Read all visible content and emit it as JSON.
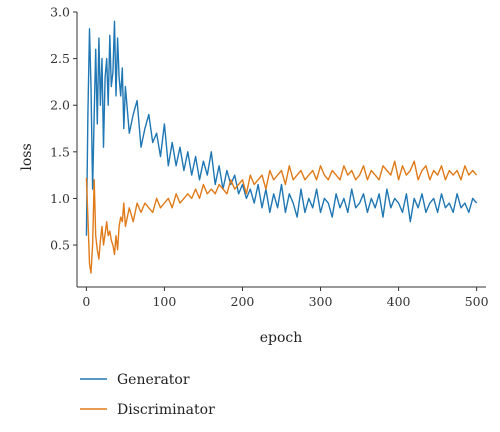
{
  "chart_data": {
    "type": "line",
    "title": "",
    "xlabel": "epoch",
    "ylabel": "loss",
    "xlim": [
      -12,
      512
    ],
    "ylim": [
      0.05,
      3.0
    ],
    "x_ticks": [
      0,
      100,
      200,
      300,
      400,
      500
    ],
    "y_ticks": [
      0.5,
      1.0,
      1.5,
      2.0,
      2.5,
      3.0
    ],
    "x_tick_labels": [
      "0",
      "100",
      "200",
      "300",
      "400",
      "500"
    ],
    "y_tick_labels": [
      "0.5",
      "1.0",
      "1.5",
      "2.0",
      "2.5",
      "3.0"
    ],
    "grid": false,
    "legend_position": "below the plot",
    "series": [
      {
        "name": "Generator",
        "color": "#1f77b4",
        "x": [
          0,
          2,
          4,
          6,
          8,
          10,
          12,
          14,
          16,
          18,
          20,
          22,
          24,
          26,
          28,
          30,
          32,
          34,
          36,
          38,
          40,
          42,
          44,
          46,
          48,
          50,
          55,
          60,
          65,
          70,
          75,
          80,
          85,
          90,
          95,
          100,
          105,
          110,
          115,
          120,
          125,
          130,
          135,
          140,
          145,
          150,
          155,
          160,
          165,
          170,
          175,
          180,
          185,
          190,
          195,
          200,
          205,
          210,
          215,
          220,
          225,
          230,
          235,
          240,
          245,
          250,
          255,
          260,
          265,
          270,
          275,
          280,
          285,
          290,
          295,
          300,
          305,
          310,
          315,
          320,
          325,
          330,
          335,
          340,
          345,
          350,
          355,
          360,
          365,
          370,
          375,
          380,
          385,
          390,
          395,
          400,
          405,
          410,
          415,
          420,
          425,
          430,
          435,
          440,
          445,
          450,
          455,
          460,
          465,
          470,
          475,
          480,
          485,
          490,
          495,
          500
        ],
        "values": [
          0.6,
          1.9,
          2.82,
          2.2,
          1.1,
          1.9,
          2.6,
          1.8,
          2.72,
          2.0,
          2.5,
          1.55,
          2.3,
          2.5,
          2.0,
          2.75,
          2.2,
          2.35,
          2.9,
          2.1,
          2.72,
          2.3,
          2.1,
          2.4,
          1.75,
          2.2,
          1.7,
          1.9,
          2.05,
          1.55,
          1.75,
          1.9,
          1.6,
          1.7,
          1.45,
          1.8,
          1.35,
          1.6,
          1.35,
          1.55,
          1.3,
          1.5,
          1.25,
          1.45,
          1.2,
          1.4,
          1.25,
          1.5,
          1.15,
          1.35,
          1.1,
          1.3,
          1.15,
          1.25,
          1.05,
          1.15,
          1.0,
          1.1,
          0.95,
          1.15,
          0.9,
          1.1,
          0.85,
          1.05,
          0.9,
          1.15,
          0.85,
          1.05,
          0.95,
          0.8,
          1.1,
          0.85,
          1.0,
          0.9,
          1.1,
          0.85,
          1.0,
          0.95,
          0.8,
          1.05,
          0.9,
          1.0,
          0.85,
          1.1,
          0.9,
          0.95,
          1.05,
          0.85,
          1.0,
          0.9,
          1.05,
          0.8,
          1.1,
          0.9,
          1.0,
          0.95,
          0.85,
          1.05,
          0.75,
          1.0,
          0.9,
          1.05,
          0.85,
          0.95,
          1.0,
          0.85,
          1.05,
          0.9,
          0.95,
          0.85,
          1.05,
          0.9,
          0.95,
          0.85,
          1.0,
          0.95
        ]
      },
      {
        "name": "Discriminator",
        "color": "#e07b1a",
        "x": [
          0,
          2,
          4,
          6,
          8,
          10,
          12,
          14,
          16,
          18,
          20,
          22,
          24,
          26,
          28,
          30,
          32,
          34,
          36,
          38,
          40,
          42,
          44,
          46,
          48,
          50,
          55,
          60,
          65,
          70,
          75,
          80,
          85,
          90,
          95,
          100,
          105,
          110,
          115,
          120,
          125,
          130,
          135,
          140,
          145,
          150,
          155,
          160,
          165,
          170,
          175,
          180,
          185,
          190,
          195,
          200,
          205,
          210,
          215,
          220,
          225,
          230,
          235,
          240,
          245,
          250,
          255,
          260,
          265,
          270,
          275,
          280,
          285,
          290,
          295,
          300,
          305,
          310,
          315,
          320,
          325,
          330,
          335,
          340,
          345,
          350,
          355,
          360,
          365,
          370,
          375,
          380,
          385,
          390,
          395,
          400,
          405,
          410,
          415,
          420,
          425,
          430,
          435,
          440,
          445,
          450,
          455,
          460,
          465,
          470,
          475,
          480,
          485,
          490,
          495,
          500
        ],
        "values": [
          1.22,
          0.8,
          0.3,
          0.2,
          0.5,
          1.2,
          0.6,
          0.45,
          0.35,
          0.55,
          0.7,
          0.5,
          0.62,
          0.75,
          0.6,
          0.65,
          0.55,
          0.5,
          0.4,
          0.6,
          0.45,
          0.7,
          0.8,
          0.75,
          0.95,
          0.7,
          0.9,
          0.75,
          0.95,
          0.85,
          0.95,
          0.9,
          0.85,
          1.0,
          0.9,
          0.95,
          1.0,
          0.9,
          1.05,
          0.95,
          1.0,
          1.05,
          1.0,
          1.1,
          1.0,
          1.15,
          1.05,
          1.1,
          1.05,
          1.15,
          1.1,
          1.05,
          1.2,
          1.1,
          1.15,
          1.2,
          1.05,
          1.25,
          1.15,
          1.2,
          1.25,
          1.1,
          1.3,
          1.2,
          1.25,
          1.3,
          1.15,
          1.35,
          1.2,
          1.25,
          1.3,
          1.2,
          1.25,
          1.3,
          1.2,
          1.35,
          1.25,
          1.2,
          1.3,
          1.25,
          1.2,
          1.35,
          1.25,
          1.3,
          1.2,
          1.25,
          1.35,
          1.2,
          1.3,
          1.25,
          1.2,
          1.35,
          1.3,
          1.25,
          1.4,
          1.2,
          1.35,
          1.25,
          1.3,
          1.4,
          1.2,
          1.3,
          1.35,
          1.2,
          1.3,
          1.25,
          1.35,
          1.2,
          1.3,
          1.25,
          1.3,
          1.2,
          1.35,
          1.25,
          1.3,
          1.25
        ]
      }
    ]
  }
}
